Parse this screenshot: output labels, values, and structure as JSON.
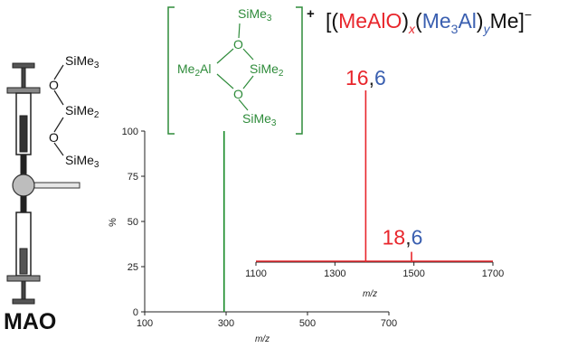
{
  "colors": {
    "main_spectrum": "#1a8c2a",
    "inset_spectrum": "#e8262c",
    "cation_structure": "#2e8b3a",
    "mao_formula_red": "#e8262c",
    "mao_formula_blue": "#3a5fb0",
    "axis": "#222222"
  },
  "mao_structure": {
    "title": "MAO",
    "atoms": [
      "SiMe3",
      "O",
      "SiMe2",
      "O",
      "SiMe3"
    ]
  },
  "cation_structure": {
    "charge": "+",
    "atoms": [
      "SiMe3",
      "O",
      "Me2Al",
      "SiMe2",
      "O",
      "SiMe3"
    ]
  },
  "anion_formula": {
    "open": "[(",
    "unit1": "MeAlO",
    "close1": ")",
    "sub_x": "x",
    "open2": "(",
    "unit2": "Me",
    "unit2_sub": "3",
    "unit2_end": "Al",
    "close2": ")",
    "sub_y": "y",
    "tail": "Me]",
    "charge": "−"
  },
  "chart_data": [
    {
      "type": "line",
      "name": "main",
      "xlabel": "m/z",
      "ylabel": "%",
      "xlim": [
        100,
        700
      ],
      "ylim": [
        0,
        100
      ],
      "x_ticks": [
        100,
        300,
        500,
        700
      ],
      "y_ticks": [
        0,
        25,
        50,
        75,
        100
      ],
      "peaks": [
        {
          "x": 295,
          "y": 100
        }
      ]
    },
    {
      "type": "line",
      "name": "inset",
      "xlabel": "m/z",
      "xlim": [
        1100,
        1700
      ],
      "ylim": [
        0,
        100
      ],
      "x_ticks": [
        1100,
        1300,
        1500,
        1700
      ],
      "peaks": [
        {
          "x": 1378,
          "y": 100,
          "label_a": "16",
          "label_sep": ",",
          "label_b": "6"
        },
        {
          "x": 1494,
          "y": 6,
          "label_a": "18",
          "label_sep": ",",
          "label_b": "6"
        }
      ]
    }
  ]
}
